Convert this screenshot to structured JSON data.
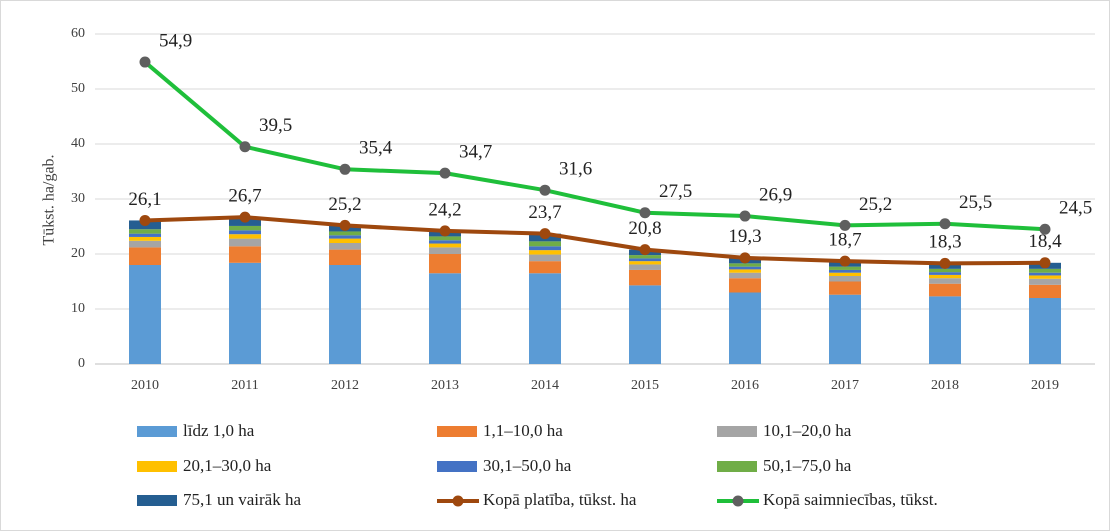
{
  "chart_data": {
    "type": "bar",
    "stacked": true,
    "y_axis_label": "Tūkst. ha/gab.",
    "categories": [
      "2010",
      "2011",
      "2012",
      "2013",
      "2014",
      "2015",
      "2016",
      "2017",
      "2018",
      "2019"
    ],
    "ylim": [
      0,
      60
    ],
    "yticks": [
      0,
      10,
      20,
      30,
      40,
      50,
      60
    ],
    "grid": true,
    "legend": "bottom",
    "series": [
      {
        "name": "līdz 1,0 ha",
        "type": "bar",
        "color": "#5b9bd5",
        "values": [
          18.0,
          18.4,
          18.0,
          16.5,
          16.5,
          14.3,
          13.0,
          12.6,
          12.3,
          12.0
        ]
      },
      {
        "name": "1,1–10,0 ha",
        "type": "bar",
        "color": "#ed7d31",
        "values": [
          3.2,
          3.0,
          2.8,
          3.5,
          2.2,
          2.8,
          2.6,
          2.4,
          2.3,
          2.4
        ]
      },
      {
        "name": "10,1–20,0 ha",
        "type": "bar",
        "color": "#a5a5a5",
        "values": [
          1.2,
          1.4,
          1.2,
          1.2,
          1.2,
          1.0,
          1.0,
          1.0,
          1.0,
          1.1
        ]
      },
      {
        "name": "20,1–30,0 ha",
        "type": "bar",
        "color": "#ffc000",
        "values": [
          0.7,
          0.8,
          0.8,
          0.7,
          0.8,
          0.6,
          0.6,
          0.6,
          0.6,
          0.6
        ]
      },
      {
        "name": "30,1–50,0 ha",
        "type": "bar",
        "color": "#4472c4",
        "values": [
          0.6,
          0.7,
          0.6,
          0.6,
          0.7,
          0.5,
          0.5,
          0.5,
          0.5,
          0.5
        ]
      },
      {
        "name": "50,1–75,0 ha",
        "type": "bar",
        "color": "#70ad47",
        "values": [
          0.8,
          0.8,
          0.7,
          0.7,
          0.9,
          0.6,
          0.6,
          0.6,
          0.6,
          0.7
        ]
      },
      {
        "name": "75,1 un vairāk ha",
        "type": "bar",
        "color": "#255e91",
        "values": [
          1.6,
          1.6,
          1.1,
          1.0,
          1.4,
          1.0,
          1.0,
          1.0,
          1.0,
          1.1
        ]
      },
      {
        "name": "Kopā platība, tūkst. ha",
        "type": "line",
        "color": "#9e480e",
        "marker_color": "#9e480e",
        "values": [
          26.1,
          26.7,
          25.2,
          24.2,
          23.7,
          20.8,
          19.3,
          18.7,
          18.3,
          18.4
        ],
        "value_labels": [
          "26,1",
          "26,7",
          "25,2",
          "24,2",
          "23,7",
          "20,8",
          "19,3",
          "18,7",
          "18,3",
          "18,4"
        ]
      },
      {
        "name": "Kopā saimniecības, tūkst.",
        "type": "line",
        "color": "#1fbf3a",
        "marker_color": "#5f5f5f",
        "values": [
          54.9,
          39.5,
          35.4,
          34.7,
          31.6,
          27.5,
          26.9,
          25.2,
          25.5,
          24.5
        ],
        "value_labels": [
          "54,9",
          "39,5",
          "35,4",
          "34,7",
          "31,6",
          "27,5",
          "26,9",
          "25,2",
          "25,5",
          "24,5"
        ]
      }
    ]
  }
}
